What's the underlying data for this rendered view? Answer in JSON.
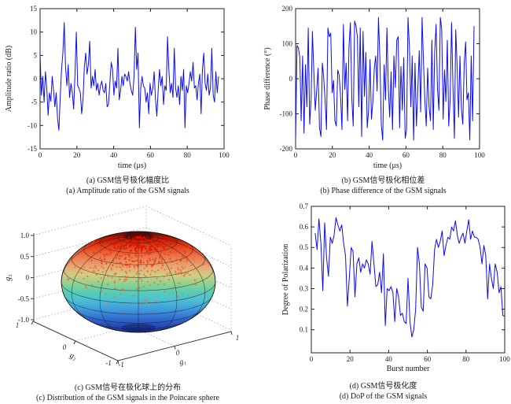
{
  "page": {
    "background": "#ffffff"
  },
  "colors": {
    "line": "#0b0bee",
    "axis": "#222222",
    "text": "#1a1a1a",
    "grid_dotted": "#9a9a9a",
    "wireframe": "#1c1c1c",
    "scatter_palette": [
      "#d90f00",
      "#ee3a10",
      "#f06d32"
    ]
  },
  "chart_data": [
    {
      "id": "a",
      "type": "line",
      "xlabel": "time (μs)",
      "ylabel": "Amplitude ratio (dB)",
      "caption_zh": "(a) GSM信号极化幅度比",
      "caption_en": "(a) Amplitude ratio of the GSM signals",
      "xlim": [
        0,
        100
      ],
      "ylim": [
        -15,
        15
      ],
      "xticks": [
        0,
        20,
        40,
        60,
        80,
        100
      ],
      "xtick_labels": [
        "0",
        "20",
        "40",
        "60",
        "80",
        "100"
      ],
      "yticks": [
        -15,
        -10,
        -5,
        0,
        5,
        10,
        15
      ],
      "ytick_labels": [
        "-15",
        "-10",
        "-5",
        "0",
        "5",
        "10",
        "15"
      ],
      "x": {
        "start": 0,
        "end": 97
      },
      "values": [
        5.2,
        -3.5,
        0.5,
        -5,
        1.5,
        -2,
        -7.8,
        -3,
        -4.8,
        0.5,
        -2.5,
        -6,
        -3,
        -8.5,
        -11,
        -4,
        2,
        5.5,
        12,
        2.5,
        -1.5,
        3,
        -4,
        -1,
        -3,
        -6.5,
        1,
        10,
        -1.5,
        -2,
        -3,
        -7.5,
        -4.5,
        2.5,
        5.5,
        1,
        3,
        8,
        -2,
        0.5,
        -1.5,
        2,
        -2.5,
        -1,
        -3.5,
        -1.5,
        -0.5,
        -2.5,
        -3,
        -1,
        -6,
        -5.5,
        -1,
        3.5,
        2,
        -3.5,
        -0.5,
        -2,
        6.5,
        -4.5,
        -2.5,
        0.5,
        -1.5,
        1,
        0.5,
        -0.5,
        1.5,
        -1,
        -2.5,
        -3.5,
        0.5,
        11,
        2,
        5.5,
        -10.5,
        -2,
        0.5,
        -1.5,
        -2,
        -5,
        -3,
        -7.5,
        -1,
        -3.5,
        -2,
        1.5,
        -4.5,
        -8,
        -2.5,
        2,
        -1.5,
        0.5,
        -5.5,
        -1.5,
        -2.5,
        9,
        2,
        -3,
        -1,
        -4,
        6.5,
        -2,
        -4,
        -1.5,
        -5.5,
        0.5,
        -2.5,
        2,
        -10.5,
        -1.5,
        -3,
        -1,
        1.5,
        -0.5,
        3.5,
        -2,
        -1.5,
        -4.5,
        -1,
        1,
        -7.5,
        2,
        5.5,
        -1,
        -2.5,
        1,
        -3.5,
        -2,
        6.5,
        -3.5,
        -5,
        1.5,
        -3,
        0.5
      ]
    },
    {
      "id": "b",
      "type": "line",
      "xlabel": "time (μs)",
      "ylabel": "Phase difference (°)",
      "caption_zh": "(b) GSM信号极化相位差",
      "caption_en": "(b) Phase difference of the GSM signals",
      "xlim": [
        0,
        100
      ],
      "ylim": [
        -200,
        200
      ],
      "xticks": [
        0,
        20,
        40,
        60,
        80,
        100
      ],
      "xtick_labels": [
        "0",
        "20",
        "40",
        "60",
        "80",
        "100"
      ],
      "yticks": [
        -200,
        -100,
        0,
        100,
        200
      ],
      "ytick_labels": [
        "-200",
        "-100",
        "0",
        "100",
        "200"
      ],
      "x": {
        "start": 0,
        "end": 97
      },
      "values": [
        -175,
        95,
        88,
        60,
        -120,
        65,
        -155,
        40,
        -80,
        145,
        -130,
        -60,
        135,
        20,
        -90,
        -35,
        30,
        -140,
        -165,
        45,
        5,
        -60,
        -145,
        145,
        120,
        130,
        -40,
        -5,
        -120,
        -135,
        25,
        10,
        -50,
        -145,
        155,
        -30,
        45,
        -120,
        90,
        160,
        -55,
        -135,
        165,
        150,
        120,
        -80,
        145,
        -165,
        135,
        -50,
        75,
        -140,
        -90,
        55,
        -115,
        -65,
        30,
        65,
        -35,
        175,
        60,
        -130,
        -175,
        40,
        -60,
        145,
        -30,
        -110,
        20,
        -145,
        65,
        -25,
        110,
        120,
        -140,
        35,
        -90,
        60,
        -170,
        -145,
        175,
        90,
        -80,
        65,
        -175,
        45,
        -135,
        -30,
        80,
        -95,
        175,
        55,
        -60,
        -135,
        30,
        -80,
        -120,
        110,
        -145,
        75,
        155,
        -30,
        -90,
        175,
        140,
        -115,
        25,
        -65,
        110,
        -135,
        -60,
        160,
        -25,
        -170,
        140,
        35,
        -110,
        65,
        -85,
        -130,
        45,
        105,
        -60,
        -40,
        -175,
        65,
        -120,
        150
      ]
    },
    {
      "id": "c",
      "type": "sphere3d",
      "caption_zh": "(c) GSM信号在极化球上的分布",
      "caption_en": "(c) Distribution of the GSM signals in the Poincare sphere",
      "axes": {
        "g1": {
          "label": "g₁",
          "ticks": [
            "-1",
            "0",
            "1"
          ]
        },
        "g2": {
          "label": "g₂",
          "ticks": [
            "1",
            "0",
            "-1"
          ]
        },
        "g3": {
          "label": "g₃",
          "ticks": [
            "1.0",
            "0.5",
            "0",
            "-0.5",
            "-1.0"
          ]
        }
      },
      "sphere": {
        "elevation_deg": 25,
        "meridian_step_deg": 30,
        "parallel_step_deg": 15,
        "gradient": [
          [
            "0%",
            "#7d0800"
          ],
          [
            "6%",
            "#bd1300"
          ],
          [
            "15%",
            "#e2401a"
          ],
          [
            "25%",
            "#ec784e"
          ],
          [
            "35%",
            "#e8a876"
          ],
          [
            "43%",
            "#d2cc84"
          ],
          [
            "52%",
            "#8ed290"
          ],
          [
            "60%",
            "#5accb4"
          ],
          [
            "68%",
            "#4cc0d4"
          ],
          [
            "78%",
            "#3f97dc"
          ],
          [
            "88%",
            "#2f62cc"
          ],
          [
            "96%",
            "#2340aa"
          ],
          [
            "100%",
            "#1a2d8e"
          ]
        ]
      },
      "scatter": {
        "count": 430,
        "lon_mean_deg": 0,
        "lon_sigma_deg": 36,
        "lat_mean_deg": 52,
        "lat_sigma_deg": 22,
        "seed": 7,
        "dot_radius": 1.1
      }
    },
    {
      "id": "d",
      "type": "line",
      "xlabel": "Burst number",
      "ylabel": "Degree of Polarization",
      "caption_zh": "(d) GSM信号极化度",
      "caption_en": "(d) DoP of the GSM signals",
      "xlim": [
        0,
        100
      ],
      "ylim": [
        -0.012,
        0.7
      ],
      "xticks": [
        0,
        20,
        40,
        60,
        80,
        100
      ],
      "xtick_labels": [
        "0",
        "20",
        "40",
        "60",
        "80",
        "100"
      ],
      "yticks": [
        0.1,
        0.2,
        0.3,
        0.4,
        0.5,
        0.6,
        0.7
      ],
      "ytick_labels": [
        "0.1",
        "0.2",
        "0.3",
        "0.4",
        "0.5",
        "0.6",
        "0.7"
      ],
      "x": {
        "start": 2,
        "end": 100
      },
      "values": [
        0.57,
        0.49,
        0.64,
        0.52,
        0.29,
        0.62,
        0.45,
        0.36,
        0.55,
        0.52,
        0.56,
        0.645,
        0.61,
        0.58,
        0.61,
        0.52,
        0.46,
        0.215,
        0.35,
        0.5,
        0.48,
        0.26,
        0.42,
        0.45,
        0.38,
        0.42,
        0.4,
        0.44,
        0.42,
        0.37,
        0.53,
        0.42,
        0.31,
        0.32,
        0.38,
        0.28,
        0.47,
        0.12,
        0.3,
        0.29,
        0.31,
        0.28,
        0.14,
        0.3,
        0.26,
        0.17,
        0.18,
        0.14,
        0.13,
        0.35,
        0.14,
        0.065,
        0.1,
        0.2,
        0.5,
        0.42,
        0.21,
        0.19,
        0.42,
        0.4,
        0.26,
        0.25,
        0.32,
        0.49,
        0.54,
        0.5,
        0.53,
        0.58,
        0.46,
        0.51,
        0.55,
        0.54,
        0.6,
        0.58,
        0.63,
        0.56,
        0.52,
        0.55,
        0.57,
        0.52,
        0.58,
        0.635,
        0.54,
        0.58,
        0.55,
        0.55,
        0.54,
        0.5,
        0.42,
        0.51,
        0.46,
        0.25,
        0.42,
        0.35,
        0.3,
        0.42,
        0.38,
        0.28,
        0.31,
        0.17,
        0.165
      ]
    }
  ]
}
